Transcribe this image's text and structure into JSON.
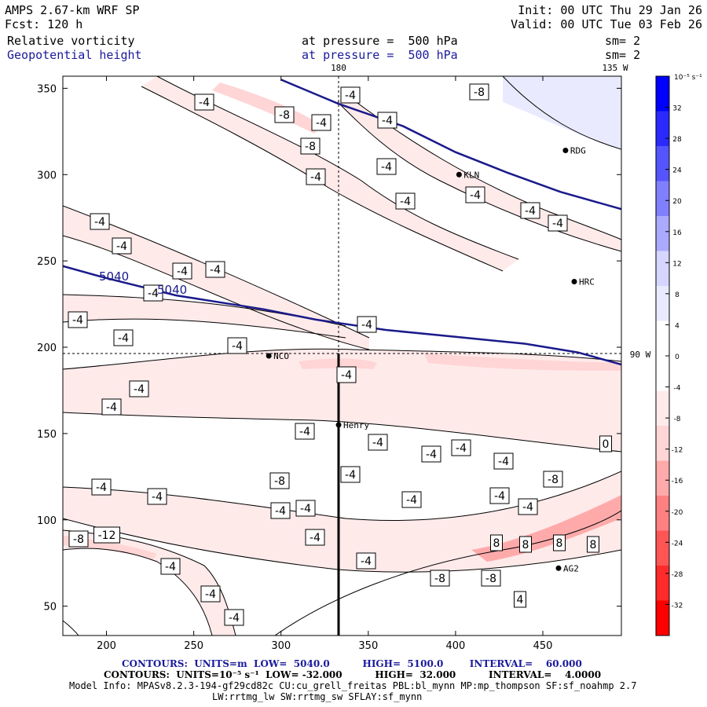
{
  "header": {
    "model": "AMPS 2.67-km WRF SP",
    "forecast": "Fcst: 120 h",
    "init": "Init: 00 UTC Thu 29 Jan 26",
    "valid": "Valid: 00 UTC Tue 03 Feb 26",
    "field1_name": "Relative vorticity",
    "field1_level": "at pressure =  500 hPa",
    "field1_sm": "sm= 2",
    "field2_name": "Geopotential height",
    "field2_level": "at pressure =  500 hPa",
    "field2_sm": "sm= 2"
  },
  "colors": {
    "height_contour": "#1a1a8c",
    "text_blue": "#1a1a9c",
    "colorbar": [
      "#ff0000",
      "#ff2a2a",
      "#ff5555",
      "#ff8080",
      "#ffaaaa",
      "#ffd5d5",
      "#ffeaea",
      "#ffffff",
      "#ffffff",
      "#eaeaff",
      "#d5d5ff",
      "#aaaaff",
      "#8080ff",
      "#5555ff",
      "#2a2aff",
      "#0000ff"
    ]
  },
  "chart_data": {
    "type": "heatmap",
    "xlim": [
      175,
      495
    ],
    "ylim": [
      33,
      357
    ],
    "x_ticks": [
      200,
      250,
      300,
      350,
      400,
      450
    ],
    "y_ticks": [
      50,
      100,
      150,
      200,
      250,
      300,
      350
    ],
    "grid_lines": {
      "lon_180_x": 333,
      "lon_90w_y": 195
    },
    "grid_labels": {
      "top": "180",
      "top_right": "135 W",
      "right": "90 W"
    },
    "colorbar": {
      "unit_label": "10⁻⁵ s⁻¹",
      "ticks": [
        32,
        28,
        24,
        20,
        16,
        12,
        8,
        4,
        0,
        -4,
        -8,
        -12,
        -16,
        -20,
        -24,
        -28,
        -32
      ]
    },
    "height_contours": [
      {
        "value": 5040,
        "points": [
          [
            175,
            247
          ],
          [
            200,
            240
          ],
          [
            240,
            230
          ],
          [
            290,
            222
          ],
          [
            320,
            216
          ],
          [
            333,
            214
          ],
          [
            360,
            210
          ],
          [
            400,
            206
          ],
          [
            440,
            202
          ],
          [
            470,
            197
          ],
          [
            495,
            190
          ]
        ]
      },
      {
        "value": 5100,
        "points": [
          [
            300,
            355
          ],
          [
            333,
            341
          ],
          [
            370,
            328
          ],
          [
            400,
            313
          ],
          [
            430,
            301
          ],
          [
            460,
            290
          ],
          [
            495,
            280
          ]
        ]
      }
    ],
    "height_contour_labels": [
      "5040",
      "5040"
    ],
    "vorticity_labels": [
      "-4",
      "-8",
      "-4",
      "-8",
      "-4",
      "-4",
      "-4",
      "-4",
      "-4",
      "-4",
      "-4",
      "-4",
      "-4",
      "-4",
      "-4",
      "-4",
      "-4",
      "-4",
      "-4",
      "-4",
      "-4",
      "-4",
      "-4",
      "-4",
      "-4",
      "-4",
      "-4",
      "-4",
      "-4",
      "-4",
      "-4",
      "-8",
      "-4",
      "-4",
      "-4",
      "-4",
      "-4",
      "-8",
      "-4",
      "-4",
      "-4",
      "-8",
      "-8",
      "-8",
      "-12",
      "-4",
      "-4",
      "-4",
      "8",
      "8",
      "8",
      "8",
      "4",
      "-8",
      "0"
    ],
    "stations": [
      {
        "name": "NCO",
        "x": 293,
        "y": 195
      },
      {
        "name": "Henry",
        "x": 333,
        "y": 155
      },
      {
        "name": "HRC",
        "x": 468,
        "y": 238
      },
      {
        "name": "RDG",
        "x": 463,
        "y": 314
      },
      {
        "name": "KLN",
        "x": 402,
        "y": 300
      },
      {
        "name": "AG2",
        "x": 459,
        "y": 72
      }
    ]
  },
  "footer": {
    "contours1": "CONTOURS:  UNITS=m  LOW=  5040.0          HIGH=  5100.0        INTERVAL=    60.000",
    "contours2": "CONTOURS:  UNITS=10⁻⁵ s⁻¹  LOW= -32.000          HIGH=  32.000          INTERVAL=    4.0000",
    "model_info": "Model Info: MPASv8.2.3-194-gf29cd82c CU:cu_grell_freitas PBL:bl_mynn MP:mp_thompson SF:sf_noahmp 2.7",
    "model_info2": "LW:rrtmg_lw SW:rrtmg_sw SFLAY:sf_mynn"
  }
}
